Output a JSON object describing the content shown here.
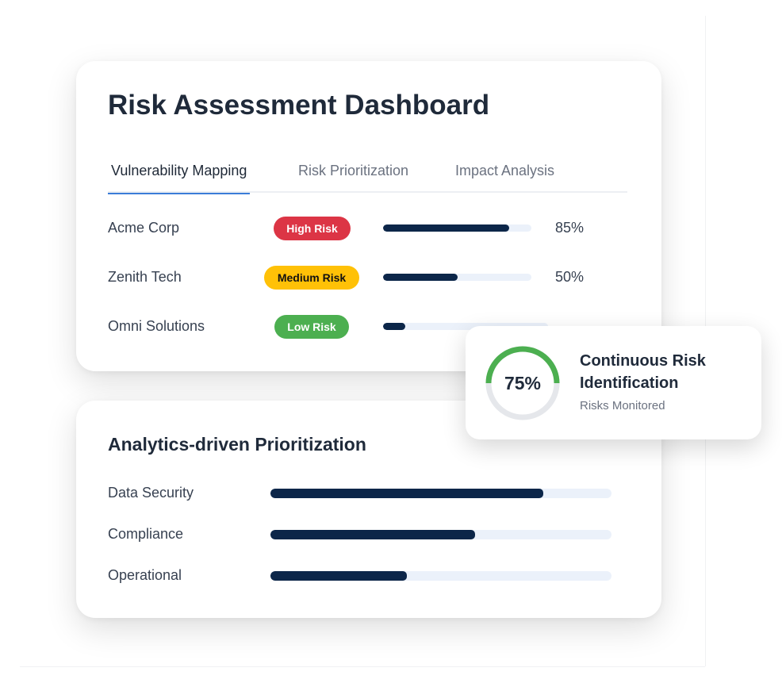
{
  "dashboard": {
    "title": "Risk Assessment Dashboard",
    "tabs": [
      {
        "label": "Vulnerability Mapping",
        "active": true
      },
      {
        "label": "Risk Prioritization"
      },
      {
        "label": "Impact Analysis"
      }
    ],
    "rows": [
      {
        "name": "Acme Corp",
        "badge": "High Risk",
        "badge_color": "#dc3545",
        "badge_text_color": "#ffffff",
        "progress": 85,
        "pct": "85%"
      },
      {
        "name": "Zenith Tech",
        "badge": "Medium Risk",
        "badge_color": "#ffc107",
        "badge_text_color": "#111111",
        "progress": 50,
        "pct": "50%"
      },
      {
        "name": "Omni Solutions",
        "badge": "Low Risk",
        "badge_color": "#4caf50",
        "badge_text_color": "#ffffff",
        "progress": 15
      }
    ]
  },
  "analytics": {
    "title": "Analytics-driven Prioritization",
    "rows": [
      {
        "name": "Data Security",
        "progress": 80
      },
      {
        "name": "Compliance",
        "progress": 60
      },
      {
        "name": "Operational",
        "progress": 40
      }
    ]
  },
  "monitor": {
    "value": "75%",
    "title_line1": "Continuous Risk",
    "title_line2": "Identification",
    "subtitle": "Risks Monitored",
    "ring_color": "#4caf50"
  },
  "colors": {
    "bar_fill": "#0c2649",
    "bar_track": "#ebf1fa",
    "tab_accent": "#3b7dd8"
  }
}
